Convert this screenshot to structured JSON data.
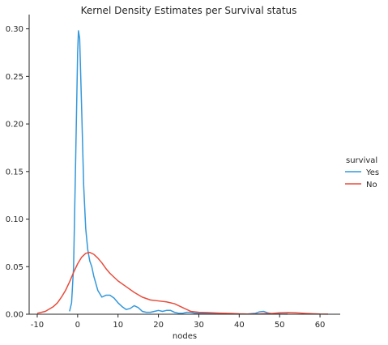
{
  "chart_data": {
    "type": "line",
    "title": "Kernel Density Estimates per Survival status",
    "xlabel": "nodes",
    "ylabel": "",
    "xlim": [
      -12,
      65
    ],
    "ylim": [
      0,
      0.315
    ],
    "xticks": [
      -10,
      0,
      10,
      20,
      30,
      40,
      50,
      60
    ],
    "yticks": [
      0.0,
      0.05,
      0.1,
      0.15,
      0.2,
      0.25,
      0.3
    ],
    "ytick_labels": [
      "0.00",
      "0.05",
      "0.10",
      "0.15",
      "0.20",
      "0.25",
      "0.30"
    ],
    "grid": false,
    "legend": {
      "title": "survival",
      "placement": "center-right"
    },
    "series": [
      {
        "name": "Yes",
        "color": "#3498db",
        "x": [
          -2,
          -1.5,
          -1,
          -0.5,
          0,
          0.2,
          0.5,
          1,
          1.5,
          2,
          2.5,
          3,
          3.5,
          4,
          5,
          6,
          7,
          8,
          9,
          10,
          11,
          12,
          13,
          14,
          15,
          16,
          17,
          18,
          19,
          20,
          21,
          22,
          23,
          24,
          25,
          26,
          27,
          28,
          29,
          30,
          32,
          35,
          38,
          40,
          42,
          44,
          45,
          46,
          47,
          48,
          50,
          52
        ],
        "values": [
          0.003,
          0.012,
          0.05,
          0.16,
          0.275,
          0.298,
          0.29,
          0.215,
          0.135,
          0.09,
          0.068,
          0.056,
          0.05,
          0.04,
          0.025,
          0.018,
          0.02,
          0.02,
          0.017,
          0.012,
          0.008,
          0.005,
          0.006,
          0.009,
          0.007,
          0.003,
          0.002,
          0.002,
          0.003,
          0.004,
          0.003,
          0.004,
          0.004,
          0.002,
          0.001,
          0.001,
          0.002,
          0.002,
          0.001,
          0.001,
          0.001,
          0.0008,
          0.0005,
          0.0003,
          0.0002,
          0.001,
          0.0025,
          0.003,
          0.0015,
          0.0005,
          0.0002,
          0.0001
        ]
      },
      {
        "name": "No",
        "color": "#e74c3c",
        "x": [
          -10,
          -8,
          -6,
          -5,
          -4,
          -3,
          -2,
          -1,
          0,
          1,
          2,
          3,
          4,
          5,
          6,
          7,
          8,
          10,
          12,
          14,
          16,
          18,
          20,
          22,
          24,
          26,
          28,
          30,
          32,
          35,
          38,
          40,
          42,
          45,
          48,
          50,
          52,
          54,
          56,
          58,
          60,
          62
        ],
        "values": [
          0.001,
          0.003,
          0.008,
          0.012,
          0.018,
          0.025,
          0.034,
          0.044,
          0.053,
          0.06,
          0.064,
          0.065,
          0.063,
          0.059,
          0.054,
          0.048,
          0.043,
          0.035,
          0.029,
          0.023,
          0.018,
          0.015,
          0.014,
          0.013,
          0.011,
          0.007,
          0.003,
          0.002,
          0.0018,
          0.0012,
          0.0008,
          0.0004,
          0.0002,
          0.0003,
          0.0008,
          0.0015,
          0.0018,
          0.0015,
          0.001,
          0.0005,
          0.0002,
          0.0001
        ]
      }
    ]
  }
}
